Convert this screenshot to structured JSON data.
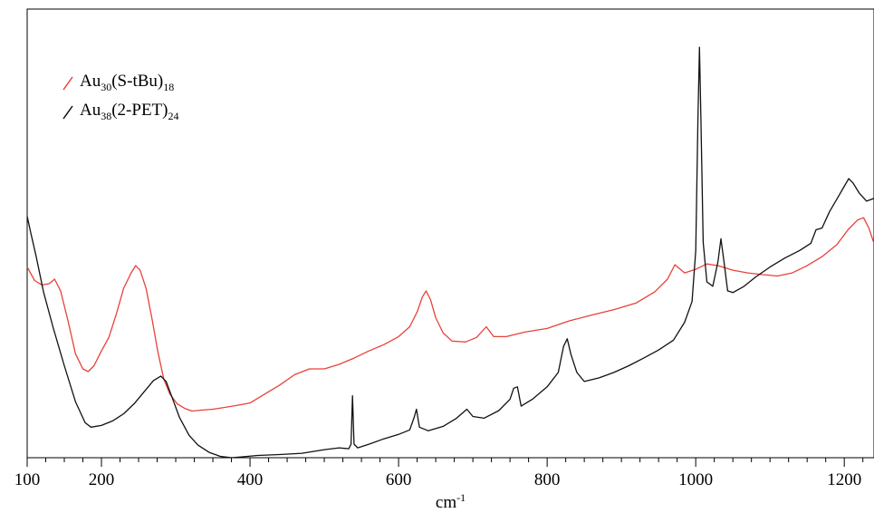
{
  "chart_data": {
    "type": "line",
    "title": "",
    "xlabel": "cm",
    "xlabel_sup": "-1",
    "ylabel": "",
    "xlim": [
      100,
      1240
    ],
    "ylim": [
      0,
      1
    ],
    "grid": false,
    "legend_position": "top-left",
    "x_major_ticks": [
      100,
      200,
      400,
      600,
      800,
      1000,
      1200
    ],
    "x_minor_step": 25,
    "series": [
      {
        "name": "Au30(S-tBu)18",
        "legend_parts": [
          {
            "text": "Au",
            "sub": false
          },
          {
            "text": "30",
            "sub": true
          },
          {
            "text": "(S-tBu)",
            "sub": false
          },
          {
            "text": "18",
            "sub": true
          }
        ],
        "color": "#e8413a",
        "points": [
          [
            100,
            0.425
          ],
          [
            110,
            0.395
          ],
          [
            120,
            0.385
          ],
          [
            130,
            0.388
          ],
          [
            137,
            0.398
          ],
          [
            145,
            0.372
          ],
          [
            155,
            0.305
          ],
          [
            165,
            0.232
          ],
          [
            175,
            0.198
          ],
          [
            182,
            0.192
          ],
          [
            190,
            0.205
          ],
          [
            200,
            0.238
          ],
          [
            210,
            0.268
          ],
          [
            220,
            0.32
          ],
          [
            230,
            0.378
          ],
          [
            240,
            0.412
          ],
          [
            246,
            0.428
          ],
          [
            252,
            0.418
          ],
          [
            260,
            0.378
          ],
          [
            268,
            0.31
          ],
          [
            276,
            0.235
          ],
          [
            284,
            0.175
          ],
          [
            292,
            0.142
          ],
          [
            302,
            0.12
          ],
          [
            312,
            0.11
          ],
          [
            322,
            0.104
          ],
          [
            335,
            0.106
          ],
          [
            350,
            0.108
          ],
          [
            365,
            0.112
          ],
          [
            380,
            0.116
          ],
          [
            400,
            0.122
          ],
          [
            420,
            0.142
          ],
          [
            440,
            0.162
          ],
          [
            460,
            0.185
          ],
          [
            480,
            0.198
          ],
          [
            500,
            0.198
          ],
          [
            520,
            0.208
          ],
          [
            540,
            0.222
          ],
          [
            560,
            0.238
          ],
          [
            580,
            0.252
          ],
          [
            600,
            0.27
          ],
          [
            615,
            0.292
          ],
          [
            625,
            0.325
          ],
          [
            632,
            0.358
          ],
          [
            637,
            0.372
          ],
          [
            643,
            0.352
          ],
          [
            650,
            0.312
          ],
          [
            660,
            0.278
          ],
          [
            672,
            0.26
          ],
          [
            690,
            0.258
          ],
          [
            705,
            0.268
          ],
          [
            718,
            0.292
          ],
          [
            728,
            0.27
          ],
          [
            745,
            0.27
          ],
          [
            770,
            0.28
          ],
          [
            800,
            0.288
          ],
          [
            830,
            0.305
          ],
          [
            860,
            0.318
          ],
          [
            890,
            0.33
          ],
          [
            920,
            0.345
          ],
          [
            945,
            0.37
          ],
          [
            962,
            0.398
          ],
          [
            972,
            0.43
          ],
          [
            985,
            0.412
          ],
          [
            1000,
            0.42
          ],
          [
            1015,
            0.432
          ],
          [
            1030,
            0.428
          ],
          [
            1050,
            0.418
          ],
          [
            1070,
            0.412
          ],
          [
            1090,
            0.408
          ],
          [
            1110,
            0.405
          ],
          [
            1130,
            0.412
          ],
          [
            1150,
            0.428
          ],
          [
            1170,
            0.448
          ],
          [
            1190,
            0.475
          ],
          [
            1205,
            0.508
          ],
          [
            1218,
            0.53
          ],
          [
            1226,
            0.535
          ],
          [
            1233,
            0.512
          ],
          [
            1240,
            0.478
          ]
        ]
      },
      {
        "name": "Au38(2-PET)24",
        "legend_parts": [
          {
            "text": "Au",
            "sub": false
          },
          {
            "text": "38",
            "sub": true
          },
          {
            "text": "(2-PET)",
            "sub": false
          },
          {
            "text": "24",
            "sub": true
          }
        ],
        "color": "#111111",
        "points": [
          [
            100,
            0.538
          ],
          [
            105,
            0.5
          ],
          [
            112,
            0.45
          ],
          [
            122,
            0.37
          ],
          [
            135,
            0.29
          ],
          [
            150,
            0.205
          ],
          [
            165,
            0.125
          ],
          [
            178,
            0.078
          ],
          [
            186,
            0.068
          ],
          [
            200,
            0.072
          ],
          [
            215,
            0.082
          ],
          [
            230,
            0.098
          ],
          [
            245,
            0.122
          ],
          [
            258,
            0.148
          ],
          [
            270,
            0.172
          ],
          [
            280,
            0.182
          ],
          [
            287,
            0.17
          ],
          [
            295,
            0.135
          ],
          [
            305,
            0.09
          ],
          [
            318,
            0.05
          ],
          [
            330,
            0.028
          ],
          [
            345,
            0.012
          ],
          [
            360,
            0.003
          ],
          [
            375,
            0.0
          ],
          [
            390,
            0.002
          ],
          [
            410,
            0.005
          ],
          [
            440,
            0.007
          ],
          [
            470,
            0.01
          ],
          [
            500,
            0.018
          ],
          [
            520,
            0.022
          ],
          [
            533,
            0.02
          ],
          [
            536,
            0.03
          ],
          [
            538,
            0.138
          ],
          [
            540,
            0.03
          ],
          [
            545,
            0.022
          ],
          [
            560,
            0.03
          ],
          [
            580,
            0.042
          ],
          [
            600,
            0.052
          ],
          [
            615,
            0.062
          ],
          [
            621,
            0.09
          ],
          [
            624,
            0.108
          ],
          [
            628,
            0.068
          ],
          [
            640,
            0.06
          ],
          [
            660,
            0.07
          ],
          [
            678,
            0.088
          ],
          [
            692,
            0.108
          ],
          [
            700,
            0.092
          ],
          [
            715,
            0.088
          ],
          [
            735,
            0.105
          ],
          [
            750,
            0.13
          ],
          [
            755,
            0.155
          ],
          [
            760,
            0.158
          ],
          [
            765,
            0.115
          ],
          [
            780,
            0.13
          ],
          [
            800,
            0.158
          ],
          [
            815,
            0.19
          ],
          [
            822,
            0.248
          ],
          [
            827,
            0.265
          ],
          [
            832,
            0.23
          ],
          [
            840,
            0.19
          ],
          [
            850,
            0.17
          ],
          [
            870,
            0.178
          ],
          [
            890,
            0.19
          ],
          [
            910,
            0.205
          ],
          [
            930,
            0.222
          ],
          [
            950,
            0.24
          ],
          [
            970,
            0.262
          ],
          [
            985,
            0.302
          ],
          [
            995,
            0.348
          ],
          [
            1000,
            0.462
          ],
          [
            1003,
            0.755
          ],
          [
            1005,
            0.915
          ],
          [
            1007,
            0.755
          ],
          [
            1010,
            0.48
          ],
          [
            1015,
            0.392
          ],
          [
            1023,
            0.382
          ],
          [
            1030,
            0.438
          ],
          [
            1034,
            0.488
          ],
          [
            1038,
            0.438
          ],
          [
            1043,
            0.372
          ],
          [
            1050,
            0.368
          ],
          [
            1065,
            0.382
          ],
          [
            1080,
            0.402
          ],
          [
            1100,
            0.425
          ],
          [
            1120,
            0.445
          ],
          [
            1140,
            0.462
          ],
          [
            1155,
            0.478
          ],
          [
            1162,
            0.508
          ],
          [
            1170,
            0.512
          ],
          [
            1180,
            0.548
          ],
          [
            1192,
            0.582
          ],
          [
            1200,
            0.605
          ],
          [
            1206,
            0.622
          ],
          [
            1212,
            0.612
          ],
          [
            1220,
            0.59
          ],
          [
            1230,
            0.572
          ],
          [
            1240,
            0.578
          ]
        ]
      }
    ]
  }
}
